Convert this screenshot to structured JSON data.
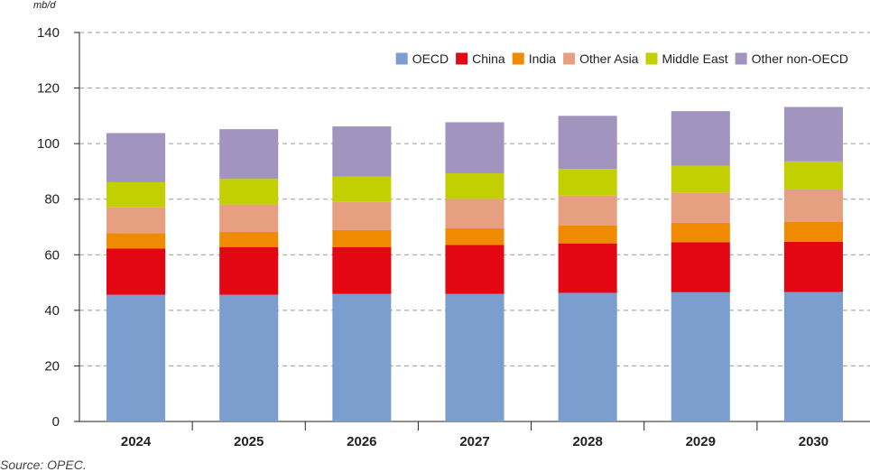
{
  "chart_data": {
    "type": "bar",
    "stacked": true,
    "unit_label": "mb/d",
    "source": "Source: OPEC.",
    "categories": [
      "2024",
      "2025",
      "2026",
      "2027",
      "2028",
      "2029",
      "2030"
    ],
    "ylim": [
      0,
      140
    ],
    "yticks": [
      0,
      20,
      40,
      60,
      80,
      100,
      120,
      140
    ],
    "grid": true,
    "legend_position": "top-right",
    "series": [
      {
        "name": "OECD",
        "color": "#7b9ecf",
        "values": [
          45.6,
          45.6,
          45.9,
          45.9,
          46.3,
          46.5,
          46.6
        ]
      },
      {
        "name": "China",
        "color": "#e30613",
        "values": [
          16.6,
          17.2,
          16.9,
          17.6,
          17.8,
          18.0,
          18.1
        ]
      },
      {
        "name": "India",
        "color": "#f08a00",
        "values": [
          5.6,
          5.4,
          6.1,
          6.0,
          6.5,
          7.0,
          7.2
        ]
      },
      {
        "name": "Other Asia",
        "color": "#e6a081",
        "values": [
          9.3,
          9.9,
          10.1,
          10.6,
          10.7,
          10.9,
          11.6
        ]
      },
      {
        "name": "Middle East",
        "color": "#c2cf00",
        "values": [
          9.0,
          9.2,
          9.1,
          9.2,
          9.6,
          9.7,
          10.1
        ]
      },
      {
        "name": "Other non-OECD",
        "color": "#a194bf",
        "values": [
          17.7,
          17.9,
          18.1,
          18.4,
          19.1,
          19.6,
          19.6
        ]
      }
    ]
  }
}
